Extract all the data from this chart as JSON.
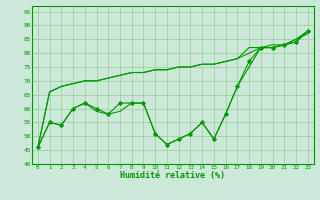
{
  "title": "",
  "xlabel": "Humidité relative (%)",
  "ylabel": "",
  "bg_color": "#cce8d8",
  "grid_color": "#99cc99",
  "line_color": "#009900",
  "xlim": [
    -0.5,
    23.5
  ],
  "ylim": [
    40,
    97
  ],
  "yticks": [
    40,
    45,
    50,
    55,
    60,
    65,
    70,
    75,
    80,
    85,
    90,
    95
  ],
  "xticks": [
    0,
    1,
    2,
    3,
    4,
    5,
    6,
    7,
    8,
    9,
    10,
    11,
    12,
    13,
    14,
    15,
    16,
    17,
    18,
    19,
    20,
    21,
    22,
    23
  ],
  "series": [
    [
      46,
      55,
      54,
      60,
      62,
      60,
      58,
      62,
      62,
      62,
      51,
      47,
      49,
      51,
      55,
      49,
      58,
      68,
      77,
      82,
      82,
      83,
      84,
      88
    ],
    [
      46,
      55,
      54,
      60,
      62,
      59,
      58,
      59,
      62,
      62,
      51,
      47,
      49,
      51,
      55,
      49,
      58,
      68,
      75,
      82,
      83,
      83,
      84,
      88
    ],
    [
      46,
      66,
      68,
      69,
      70,
      70,
      71,
      72,
      73,
      73,
      74,
      74,
      75,
      75,
      76,
      76,
      77,
      78,
      80,
      82,
      82,
      83,
      85,
      87
    ],
    [
      46,
      66,
      68,
      69,
      70,
      70,
      71,
      72,
      73,
      73,
      74,
      74,
      75,
      75,
      76,
      76,
      77,
      78,
      82,
      82,
      82,
      83,
      85,
      88
    ]
  ]
}
